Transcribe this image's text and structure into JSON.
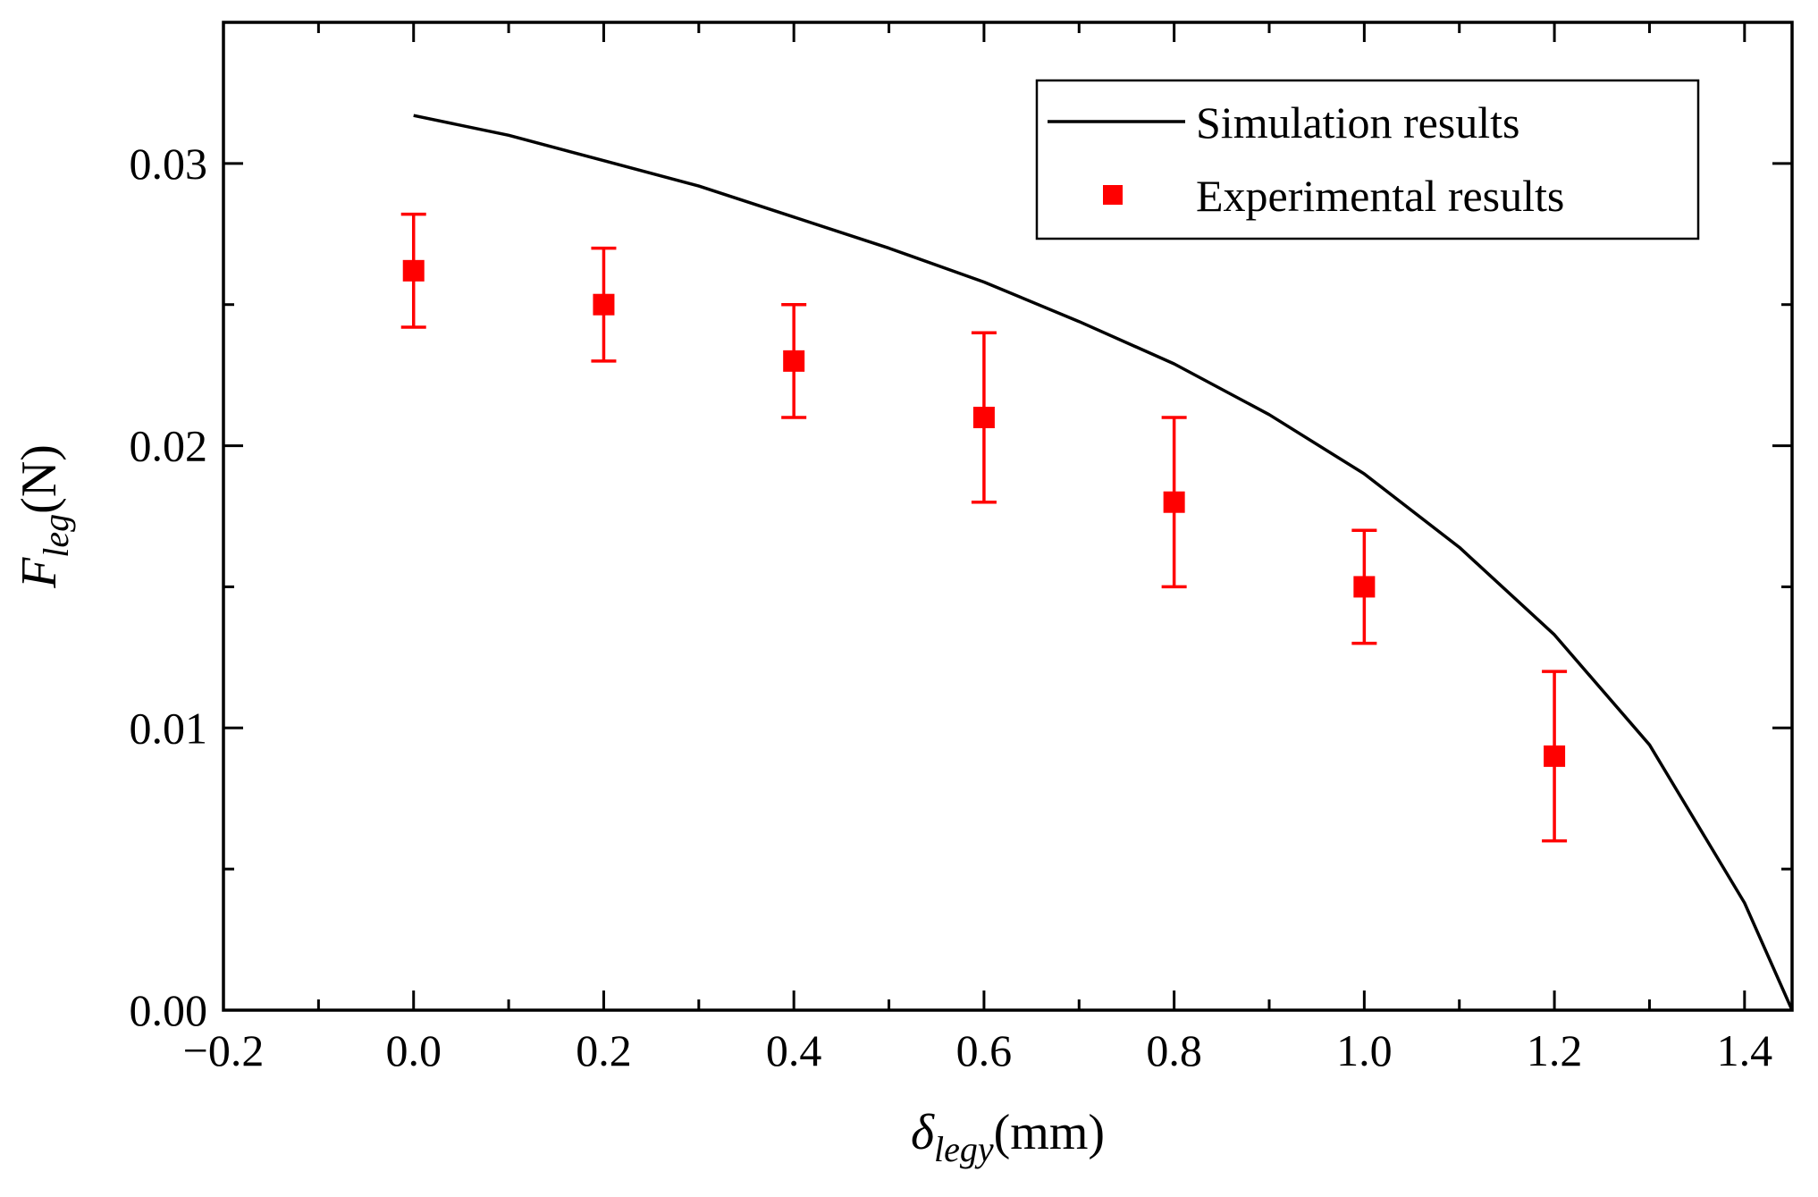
{
  "chart_data": {
    "type": "scatter",
    "title": "",
    "xlabel": {
      "main": "δ",
      "sub": "legy",
      "unit": "(mm)"
    },
    "ylabel": {
      "main": "F",
      "sub": "leg",
      "unit": "(N)"
    },
    "xlim": [
      -0.2,
      1.45
    ],
    "ylim": [
      0.0,
      0.035
    ],
    "xticks": [
      -0.2,
      0.0,
      0.2,
      0.4,
      0.6,
      0.8,
      1.0,
      1.2,
      1.4
    ],
    "xtick_labels": [
      "−0.2",
      "0.0",
      "0.2",
      "0.4",
      "0.6",
      "0.8",
      "1.0",
      "1.2",
      "1.4"
    ],
    "yticks": [
      0.0,
      0.01,
      0.02,
      0.03
    ],
    "ytick_labels": [
      "0.00",
      "0.01",
      "0.02",
      "0.03"
    ],
    "grid": false,
    "legend_position": "top-right",
    "series": [
      {
        "name": "Simulation results",
        "kind": "line",
        "color": "#000000",
        "x": [
          0.0,
          0.1,
          0.2,
          0.3,
          0.4,
          0.5,
          0.6,
          0.7,
          0.8,
          0.9,
          1.0,
          1.1,
          1.2,
          1.3,
          1.4,
          1.45
        ],
        "y": [
          0.0317,
          0.031,
          0.0301,
          0.0292,
          0.0281,
          0.027,
          0.0258,
          0.0244,
          0.0229,
          0.0211,
          0.019,
          0.0164,
          0.0133,
          0.0094,
          0.0038,
          0.0
        ]
      },
      {
        "name": "Experimental results",
        "kind": "scatter",
        "marker": "square",
        "color": "#ff0000",
        "x": [
          0.0,
          0.2,
          0.4,
          0.6,
          0.8,
          1.0,
          1.2
        ],
        "y": [
          0.0262,
          0.025,
          0.023,
          0.021,
          0.018,
          0.015,
          0.009
        ],
        "yerr_low": [
          0.0242,
          0.023,
          0.021,
          0.018,
          0.015,
          0.013,
          0.006
        ],
        "yerr_high": [
          0.0282,
          0.027,
          0.025,
          0.024,
          0.021,
          0.017,
          0.012
        ]
      }
    ]
  }
}
